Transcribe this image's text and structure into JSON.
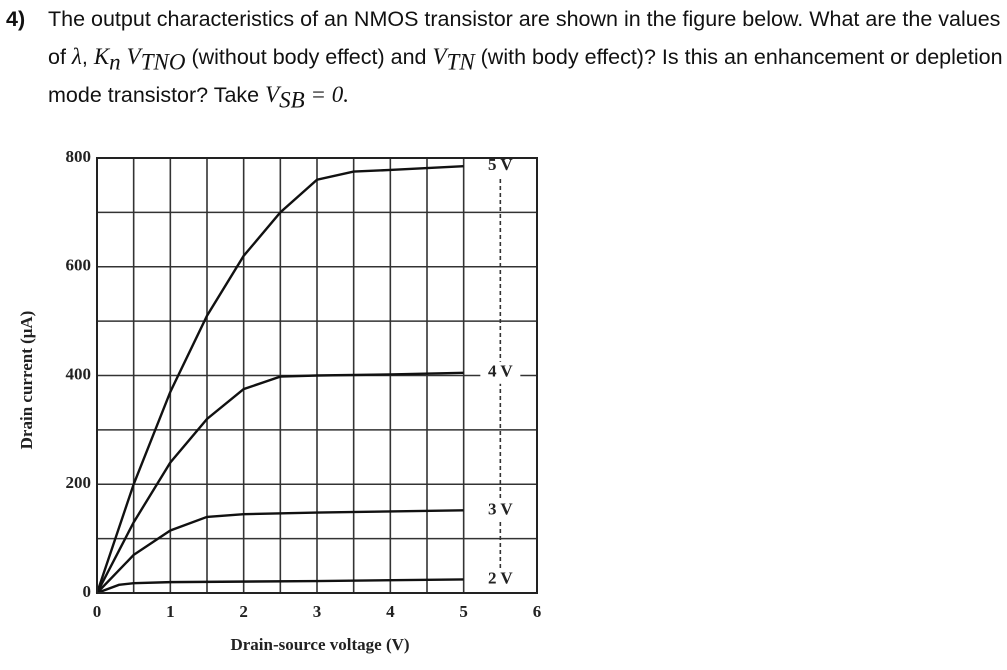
{
  "question": {
    "number": "4)",
    "parts": [
      "The output characteristics of an NMOS transistor are shown in the figure below. What are the values of ",
      "λ",
      ", ",
      "K",
      "n",
      " ",
      "V",
      "TNO",
      " (without body effect)  and ",
      "V",
      "TN",
      " (with body effect)? Is this an enhancement or depletion mode transistor? Take ",
      "V",
      "SB",
      " = 0."
    ]
  },
  "chart_data": {
    "type": "line",
    "x_label": "Drain-source voltage (V)",
    "y_label": "Drain current (μA)",
    "xlim": [
      0,
      6
    ],
    "xticks": [
      0,
      1,
      2,
      3,
      4,
      5,
      6
    ],
    "ylim": [
      0,
      800
    ],
    "yticks": [
      0,
      200,
      400,
      600,
      800
    ],
    "grid": true,
    "color": "#111111",
    "series": [
      {
        "name": "5 V",
        "x": [
          0,
          0.5,
          1,
          1.5,
          2,
          2.5,
          3,
          3.5,
          4,
          5
        ],
        "values": [
          0,
          200,
          370,
          510,
          620,
          700,
          760,
          775,
          778,
          785
        ]
      },
      {
        "name": "4 V",
        "x": [
          0,
          0.5,
          1,
          1.5,
          2,
          2.5,
          3,
          4,
          5
        ],
        "values": [
          0,
          130,
          240,
          320,
          375,
          398,
          400,
          402,
          405
        ]
      },
      {
        "name": "3 V",
        "x": [
          0,
          0.5,
          1,
          1.5,
          2,
          3,
          4,
          5
        ],
        "values": [
          0,
          70,
          115,
          140,
          145,
          148,
          150,
          152
        ]
      },
      {
        "name": "2 V",
        "x": [
          0,
          0.3,
          0.5,
          1,
          3,
          5
        ],
        "values": [
          0,
          15,
          18,
          20,
          22,
          25
        ]
      }
    ]
  }
}
